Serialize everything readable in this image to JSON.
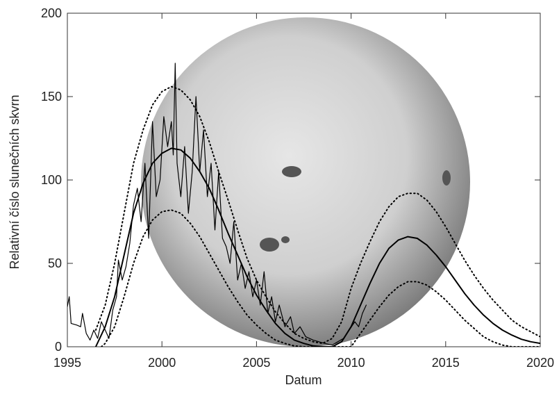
{
  "chart_data": {
    "type": "line",
    "xlabel": "Datum",
    "ylabel": "Relativní číslo slunečních skvrn",
    "xlim": [
      1995,
      2020
    ],
    "xticks": [
      1995,
      2000,
      2005,
      2010,
      2015,
      2020
    ],
    "ylim": [
      0,
      200
    ],
    "yticks": [
      0,
      50,
      100,
      150,
      200
    ],
    "series": [
      {
        "color": "#000000",
        "dash": "solid",
        "width": 1.2,
        "x": [
          1995.0,
          1995.1,
          1995.2,
          1995.5,
          1995.7,
          1995.8,
          1996.0,
          1996.2,
          1996.4,
          1996.6,
          1996.8,
          1997.0,
          1997.2,
          1997.4,
          1997.6,
          1997.7,
          1997.9,
          1998.1,
          1998.3,
          1998.5,
          1998.7,
          1998.9,
          1999.1,
          1999.3,
          1999.5,
          1999.7,
          1999.9,
          2000.1,
          2000.3,
          2000.5,
          2000.6,
          2000.7,
          2000.8,
          2001.0,
          2001.2,
          2001.4,
          2001.6,
          2001.8,
          2002.0,
          2002.2,
          2002.4,
          2002.6,
          2002.8,
          2003.0,
          2003.2,
          2003.4,
          2003.6,
          2003.8,
          2004.0,
          2004.2,
          2004.4,
          2004.6,
          2004.8,
          2005.0,
          2005.2,
          2005.4,
          2005.6,
          2005.8,
          2006.0,
          2006.2,
          2006.5,
          2006.8,
          2007.0,
          2007.3,
          2007.6,
          2008.0,
          2008.3,
          2008.6,
          2009.0,
          2009.3,
          2009.6,
          2009.9,
          2010.2,
          2010.4,
          2010.6,
          2010.8
        ],
        "values": [
          24,
          30,
          14,
          13,
          12,
          20,
          8,
          4,
          10,
          5,
          15,
          10,
          5,
          22,
          30,
          52,
          40,
          48,
          62,
          85,
          95,
          75,
          110,
          65,
          135,
          90,
          100,
          138,
          120,
          135,
          115,
          170,
          110,
          90,
          120,
          80,
          105,
          150,
          105,
          130,
          90,
          110,
          70,
          105,
          65,
          60,
          50,
          75,
          40,
          50,
          35,
          45,
          30,
          40,
          25,
          45,
          20,
          30,
          15,
          25,
          12,
          18,
          8,
          12,
          6,
          4,
          3,
          2,
          1,
          3,
          5,
          10,
          15,
          12,
          20,
          25
        ]
      },
      {
        "color": "#000000",
        "dash": "solid",
        "width": 2,
        "x": [
          1996.5,
          1997,
          1997.5,
          1998,
          1998.5,
          1999,
          1999.5,
          2000,
          2000.5,
          2001,
          2001.5,
          2002,
          2002.5,
          2003,
          2003.5,
          2004,
          2004.5,
          2005,
          2005.5,
          2006,
          2006.5,
          2007,
          2007.5,
          2008,
          2008.5,
          2009,
          2009.5,
          2010,
          2010.5,
          2011,
          2011.5,
          2012,
          2012.5,
          2013,
          2013.5,
          2014,
          2014.5,
          2015,
          2015.5,
          2016,
          2016.5,
          2017,
          2017.5,
          2018,
          2018.5,
          2019,
          2019.5,
          2020
        ],
        "values": [
          0,
          12,
          30,
          55,
          80,
          98,
          110,
          116,
          119,
          118,
          113,
          105,
          95,
          82,
          68,
          55,
          42,
          31,
          22,
          14,
          8,
          4,
          2,
          0.5,
          0,
          0,
          3,
          12,
          25,
          38,
          50,
          59,
          64,
          66,
          65,
          61,
          55,
          48,
          40,
          32,
          25,
          19,
          14,
          10,
          7,
          4.5,
          3,
          2
        ]
      },
      {
        "color": "#000000",
        "dash": "dotted",
        "width": 2,
        "x": [
          1996.5,
          1997,
          1997.5,
          1998,
          1998.5,
          1999,
          1999.5,
          2000,
          2000.5,
          2001,
          2001.5,
          2002,
          2002.5,
          2003,
          2003.5,
          2004,
          2004.5,
          2005,
          2005.5,
          2006,
          2006.5,
          2007,
          2007.5,
          2008,
          2008.5,
          2009,
          2009.5,
          2010,
          2010.5,
          2011,
          2011.5,
          2012,
          2012.5,
          2013,
          2013.5,
          2014,
          2014.5,
          2015,
          2015.5,
          2016,
          2016.5,
          2017,
          2017.5,
          2018,
          2018.5,
          2019,
          2019.5,
          2020
        ],
        "values": [
          10,
          25,
          50,
          80,
          110,
          130,
          145,
          153,
          156,
          154,
          148,
          138,
          123,
          105,
          88,
          70,
          53,
          40,
          30,
          21,
          14,
          8,
          5,
          3,
          2,
          5,
          15,
          35,
          50,
          63,
          75,
          84,
          90,
          92,
          92,
          88,
          81,
          72,
          62,
          52,
          43,
          35,
          28,
          22,
          16,
          12,
          9,
          6
        ]
      },
      {
        "color": "#000000",
        "dash": "dotted",
        "width": 2,
        "x": [
          1996.8,
          1997,
          1997.5,
          1998,
          1998.5,
          1999,
          1999.5,
          2000,
          2000.5,
          2001,
          2001.5,
          2002,
          2002.5,
          2003,
          2003.5,
          2004,
          2004.5,
          2005,
          2005.5,
          2006,
          2006.5,
          2007,
          2007.5,
          2010,
          2010.5,
          2011,
          2011.5,
          2012,
          2012.5,
          2013,
          2013.5,
          2014,
          2014.5,
          2015,
          2015.5,
          2016,
          2016.5,
          2017,
          2017.5,
          2018,
          2018.5,
          2020
        ],
        "values": [
          0,
          2,
          12,
          30,
          50,
          66,
          76,
          81,
          82,
          80,
          74,
          66,
          56,
          46,
          36,
          27,
          19,
          13,
          8,
          4,
          2,
          0.5,
          0,
          0,
          8,
          16,
          24,
          31,
          36,
          39,
          39,
          37,
          33,
          28,
          22,
          16,
          11,
          6,
          3,
          1,
          0,
          0
        ]
      }
    ]
  }
}
